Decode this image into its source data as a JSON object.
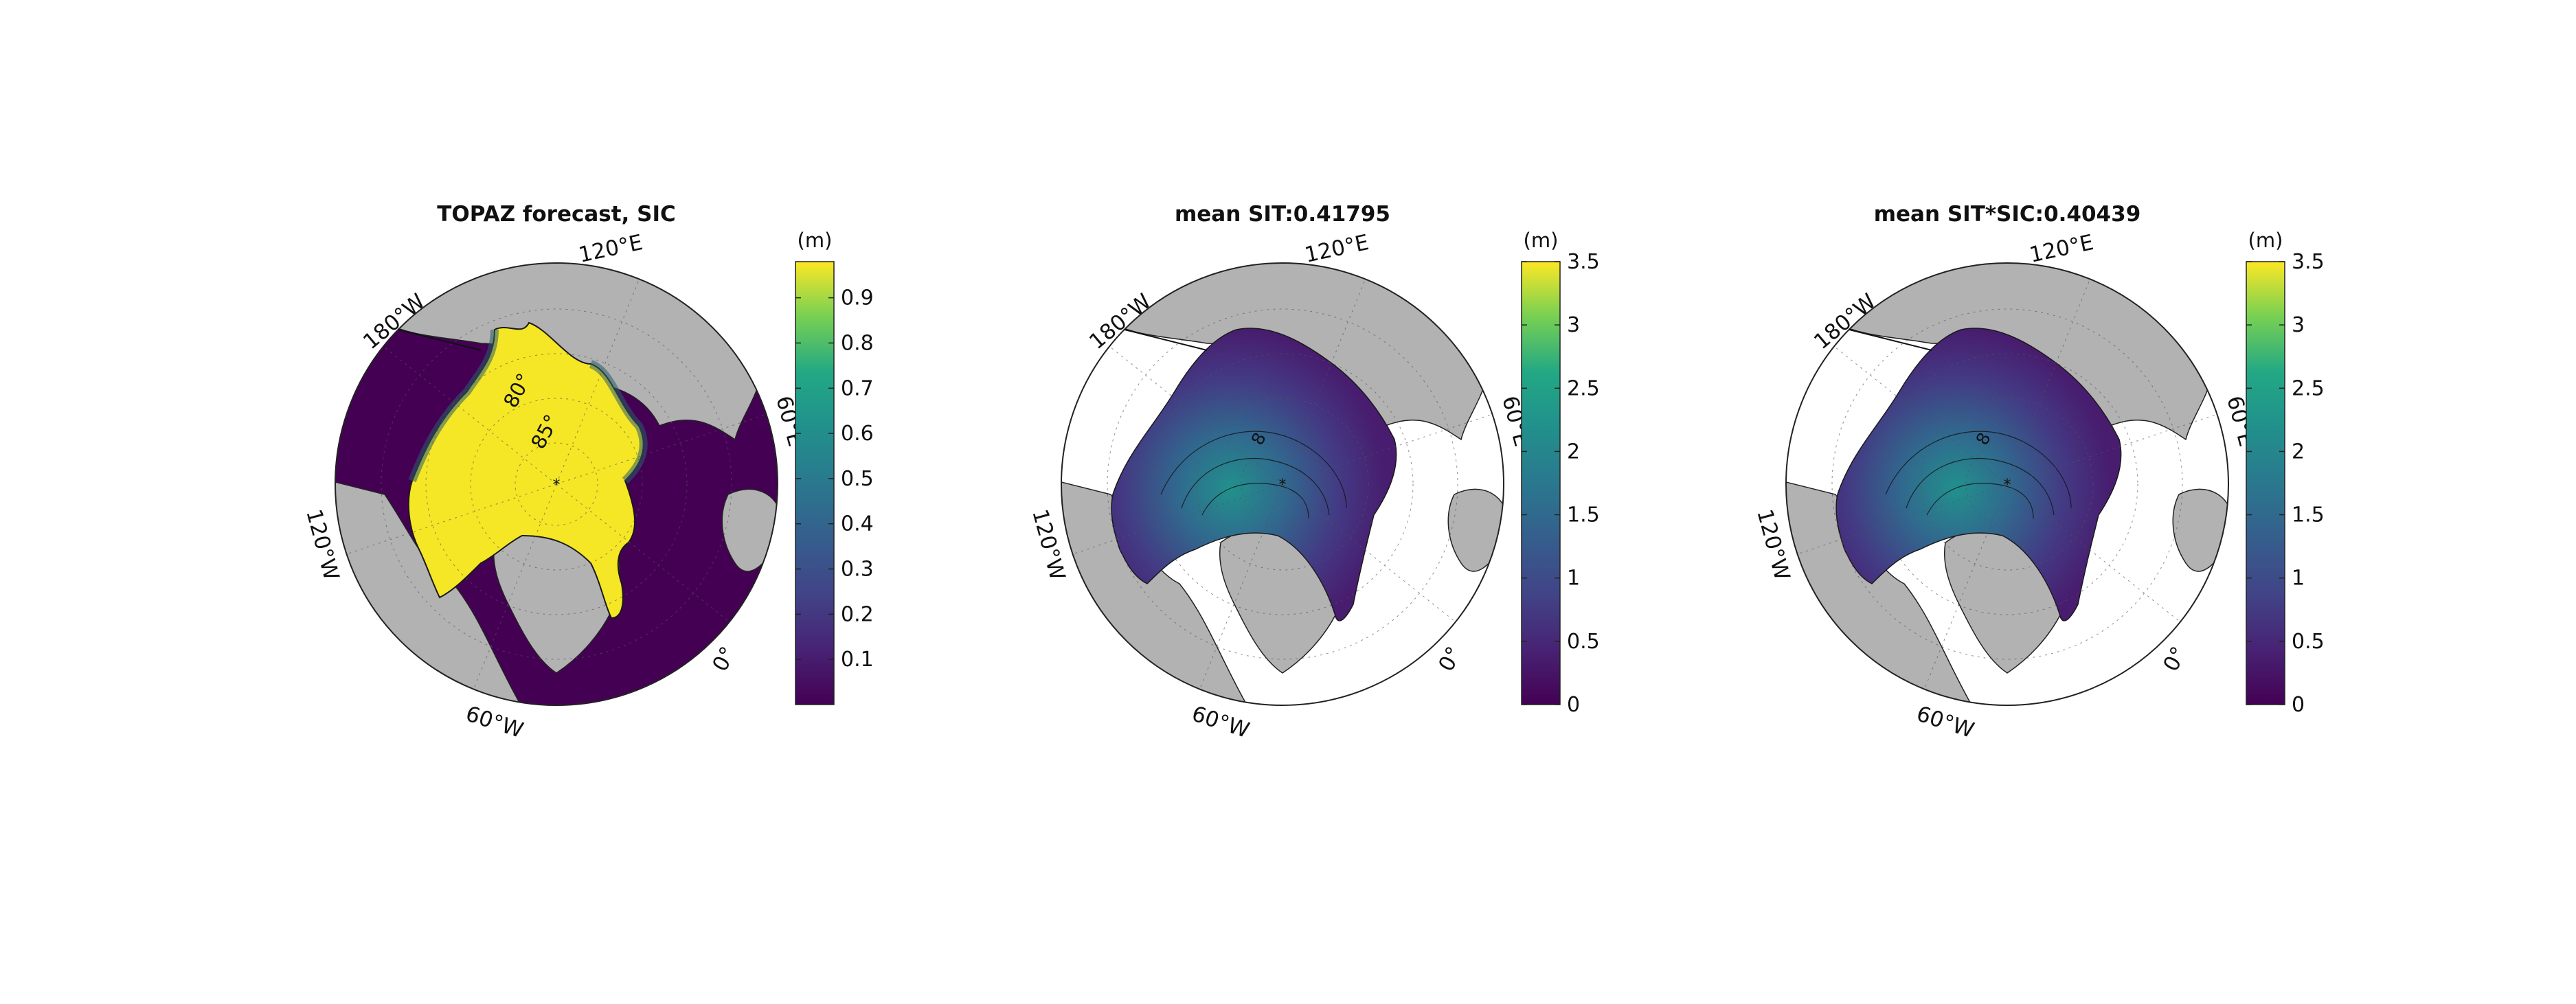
{
  "figure": {
    "panels": [
      {
        "id": "sic",
        "title": "TOPAZ forecast, SIC",
        "unit": "(m)",
        "colorbar_ticks": [
          "0.1",
          "0.2",
          "0.3",
          "0.4",
          "0.5",
          "0.6",
          "0.7",
          "0.8",
          "0.9"
        ],
        "colorbar_range": [
          0,
          0.98
        ],
        "field": "sic",
        "lon_labels": {
          "e120": "120°E",
          "w180": "180°W",
          "e60": "60°E",
          "w120": "120°W",
          "z0": "0°",
          "w60": "60°W"
        },
        "lat_labels": [
          "80°",
          "85°"
        ]
      },
      {
        "id": "sit",
        "title": "mean SIT:0.41795",
        "unit": "(m)",
        "colorbar_ticks": [
          "0",
          "0.5",
          "1",
          "1.5",
          "2",
          "2.5",
          "3",
          "3.5"
        ],
        "colorbar_range": [
          0,
          3.5
        ],
        "field": "sit",
        "lon_labels": {
          "e120": "120°E",
          "w180": "180°W",
          "e60": "60°E",
          "w120": "120°W",
          "z0": "0°",
          "w60": "60°W"
        },
        "contour_label": "8"
      },
      {
        "id": "sitsic",
        "title": "mean SIT*SIC:0.40439",
        "unit": "(m)",
        "colorbar_ticks": [
          "0",
          "0.5",
          "1",
          "1.5",
          "2",
          "2.5",
          "3",
          "3.5"
        ],
        "colorbar_range": [
          0,
          3.5
        ],
        "field": "sit",
        "lon_labels": {
          "e120": "120°E",
          "w180": "180°W",
          "e60": "60°E",
          "w120": "120°W",
          "z0": "0°",
          "w60": "60°W"
        },
        "contour_label": "8"
      }
    ],
    "colors": {
      "land": "#b2b2b2",
      "viridis_low": "#440154",
      "viridis_mid": "#21918c",
      "viridis_high": "#fde725",
      "ice_full": "#f5e626"
    }
  }
}
